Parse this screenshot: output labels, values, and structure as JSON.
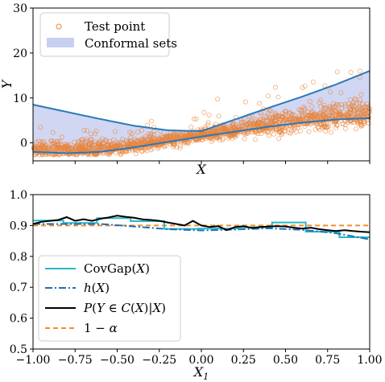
{
  "chart_data": [
    {
      "type": "scatter",
      "xlabel": "X",
      "ylabel": "Y",
      "ylim": [
        -4,
        30
      ],
      "yticks": [
        "0",
        "10",
        "20",
        "30"
      ],
      "grid": false,
      "legend_position": "top-left",
      "legend": {
        "points": "Test point",
        "band": "Conformal sets"
      },
      "colors": {
        "points": "#e8833a",
        "band_fill": "#c9cff0",
        "band_edge": "#2b78b8"
      },
      "band_x": [
        0.0,
        0.1,
        0.2,
        0.3,
        0.4,
        0.5,
        0.6,
        0.7,
        0.8,
        0.9,
        1.0
      ],
      "band_upper": [
        8.5,
        6.9,
        5.3,
        3.8,
        2.8,
        2.6,
        5.2,
        7.8,
        10.3,
        13.0,
        16.0
      ],
      "band_lower": [
        -2.0,
        -2.3,
        -2.0,
        -1.0,
        0.2,
        1.4,
        2.5,
        3.6,
        4.5,
        5.2,
        5.5
      ],
      "points": {
        "median": [
          -1.5,
          -1.6,
          -1.3,
          -0.5,
          0.5,
          1.6,
          2.8,
          4.0,
          5.0,
          5.9,
          6.5
        ],
        "spread": [
          1.6,
          1.5,
          1.3,
          1.1,
          1.0,
          1.0,
          1.2,
          1.5,
          1.8,
          2.1,
          2.5
        ]
      }
    },
    {
      "type": "line",
      "xlabel": "X1",
      "ylim": [
        0.5,
        1.0
      ],
      "xlim": [
        -1.0,
        1.0
      ],
      "xticks": [
        "−1.00",
        "−0.75",
        "−0.50",
        "−0.25",
        "0.00",
        "0.25",
        "0.50",
        "0.75",
        "1.00"
      ],
      "yticks": [
        "0.5",
        "0.6",
        "0.7",
        "0.8",
        "0.9",
        "1.0"
      ],
      "grid": false,
      "legend_position": "bottom-left",
      "series": [
        {
          "name": "CovGap(X)",
          "style": "step",
          "color": "#29b6c8",
          "x": [
            -1.0,
            -0.82,
            -0.62,
            -0.42,
            -0.22,
            -0.02,
            0.22,
            0.42,
            0.62,
            0.82,
            1.0
          ],
          "values": [
            0.916,
            0.908,
            0.924,
            0.914,
            0.889,
            0.89,
            0.894,
            0.91,
            0.88,
            0.862,
            0.855
          ]
        },
        {
          "name": "h(X)",
          "style": "dashdot",
          "color": "#1f6fb4",
          "x": [
            -1.0,
            -0.6,
            -0.4,
            -0.2,
            0.0,
            0.2,
            0.4,
            0.6,
            0.8,
            1.0
          ],
          "values": [
            0.905,
            0.905,
            0.897,
            0.888,
            0.884,
            0.887,
            0.891,
            0.886,
            0.875,
            0.855
          ]
        },
        {
          "name": "P(Y ∈ C(X)|X)",
          "style": "solid",
          "color": "#000000",
          "x": [
            -1.0,
            -0.95,
            -0.9,
            -0.85,
            -0.8,
            -0.75,
            -0.7,
            -0.65,
            -0.6,
            -0.55,
            -0.5,
            -0.45,
            -0.4,
            -0.35,
            -0.3,
            -0.25,
            -0.2,
            -0.15,
            -0.1,
            -0.05,
            0.0,
            0.05,
            0.1,
            0.15,
            0.2,
            0.25,
            0.3,
            0.35,
            0.4,
            0.45,
            0.5,
            0.55,
            0.6,
            0.65,
            0.7,
            0.75,
            0.8,
            0.85,
            0.9,
            0.95,
            1.0
          ],
          "values": [
            0.905,
            0.912,
            0.915,
            0.918,
            0.927,
            0.915,
            0.92,
            0.915,
            0.922,
            0.926,
            0.932,
            0.928,
            0.925,
            0.92,
            0.918,
            0.915,
            0.91,
            0.905,
            0.9,
            0.915,
            0.9,
            0.895,
            0.898,
            0.885,
            0.895,
            0.898,
            0.892,
            0.895,
            0.897,
            0.898,
            0.897,
            0.893,
            0.89,
            0.893,
            0.888,
            0.885,
            0.882,
            0.885,
            0.882,
            0.88,
            0.878
          ]
        },
        {
          "name": "1 − α",
          "style": "dashed",
          "color": "#f28e2b",
          "x": [
            -1.0,
            1.0
          ],
          "values": [
            0.9,
            0.9
          ]
        }
      ]
    }
  ]
}
